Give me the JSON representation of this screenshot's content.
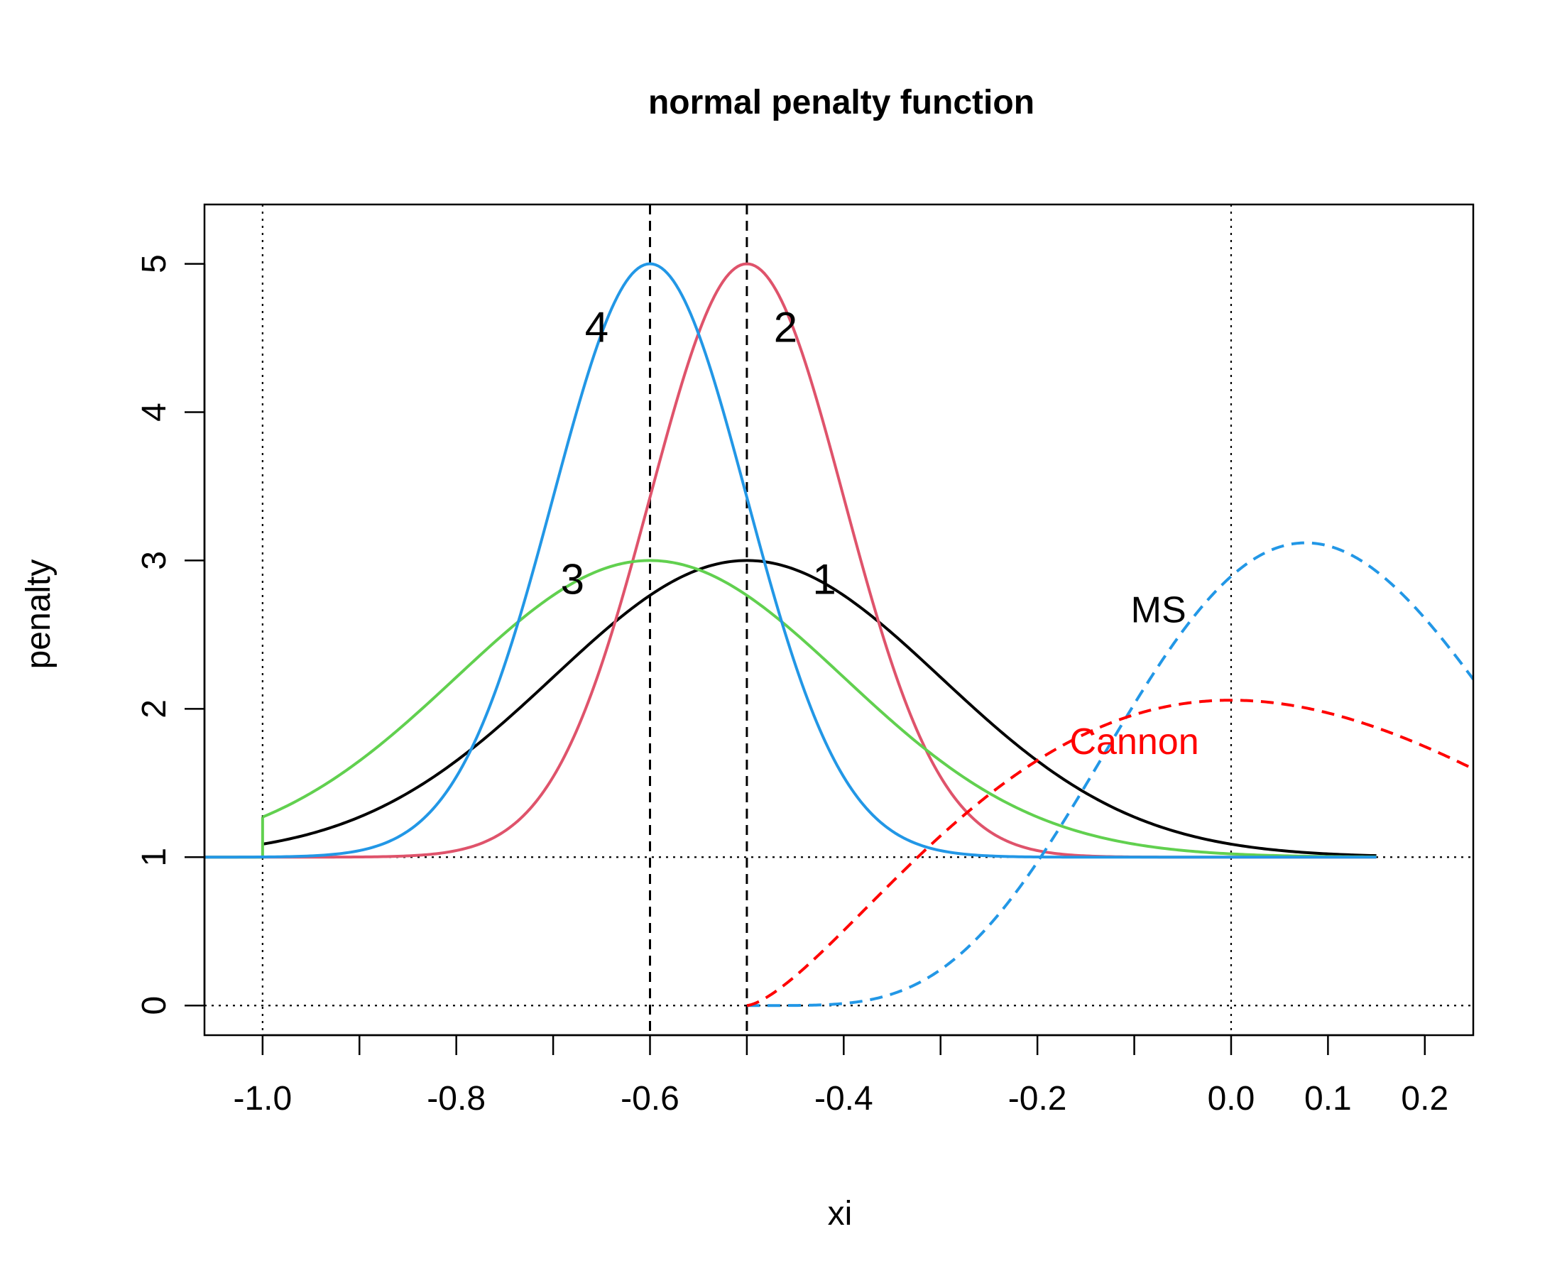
{
  "chart_data": {
    "type": "line",
    "title": "normal penalty function",
    "xlabel": "xi",
    "ylabel": "penalty",
    "xlim": [
      -1.06,
      0.25
    ],
    "ylim": [
      -0.2,
      5.4
    ],
    "xticks": [
      -1.0,
      -0.9,
      -0.8,
      -0.7,
      -0.6,
      -0.5,
      -0.4,
      -0.3,
      -0.2,
      -0.1,
      0.0,
      0.1,
      0.2
    ],
    "xtick_labels": [
      {
        "x": -1.0,
        "text": "-1.0"
      },
      {
        "x": -0.8,
        "text": "-0.8"
      },
      {
        "x": -0.6,
        "text": "-0.6"
      },
      {
        "x": -0.4,
        "text": "-0.4"
      },
      {
        "x": -0.2,
        "text": "-0.2"
      },
      {
        "x": 0.0,
        "text": "0.0"
      },
      {
        "x": 0.1,
        "text": "0.1"
      },
      {
        "x": 0.2,
        "text": "0.2"
      }
    ],
    "ytick_labels": [
      {
        "y": 0,
        "text": "0"
      },
      {
        "y": 1,
        "text": "1"
      },
      {
        "y": 2,
        "text": "2"
      },
      {
        "y": 3,
        "text": "3"
      },
      {
        "y": 4,
        "text": "4"
      },
      {
        "y": 5,
        "text": "5"
      }
    ],
    "reference_lines": [
      {
        "orientation": "h",
        "value": 0,
        "style": "dotted"
      },
      {
        "orientation": "h",
        "value": 1,
        "style": "dotted"
      },
      {
        "orientation": "v",
        "value": -1.0,
        "style": "dotted"
      },
      {
        "orientation": "v",
        "value": 0.0,
        "style": "dotted"
      },
      {
        "orientation": "v",
        "value": -0.6,
        "style": "dashed"
      },
      {
        "orientation": "v",
        "value": -0.5,
        "style": "dashed"
      }
    ],
    "series": [
      {
        "name": "1",
        "color": "#000000",
        "dash": "solid",
        "kind": "normal",
        "mean": -0.5,
        "sd": 0.2,
        "peak": 3,
        "from": -1.0,
        "to": 0.15
      },
      {
        "name": "2",
        "color": "#DF536B",
        "dash": "solid",
        "kind": "normal",
        "mean": -0.5,
        "sd": 0.1,
        "peak": 5,
        "from": -1.06,
        "to": 0.15
      },
      {
        "name": "3",
        "color": "#61D04F",
        "dash": "solid",
        "kind": "normal",
        "mean": -0.6,
        "sd": 0.2,
        "peak": 3,
        "from": -1.0,
        "to": 0.15,
        "left_segment": [
          [
            -1.06,
            1
          ],
          [
            -1.0,
            1
          ],
          [
            -1.0,
            1.27
          ]
        ]
      },
      {
        "name": "4",
        "color": "#2297E6",
        "dash": "solid",
        "kind": "normal",
        "mean": -0.6,
        "sd": 0.1,
        "peak": 5,
        "from": -1.06,
        "to": 0.15
      },
      {
        "name": "MS",
        "color": "#2297E6",
        "dash": "dashed",
        "kind": "beta",
        "a": 6,
        "b": 9,
        "from": -0.5,
        "to": 0.25
      },
      {
        "name": "Cannon",
        "color": "#FF0000",
        "dash": "dashed",
        "kind": "beta",
        "a": 2.5,
        "b": 4,
        "from": -0.5,
        "to": 0.25
      }
    ],
    "annotations": [
      {
        "text": "1",
        "x": -0.42,
        "y": 2.85,
        "color": "#000000",
        "class": "curve-label"
      },
      {
        "text": "2",
        "x": -0.46,
        "y": 4.55,
        "color": "#000000",
        "class": "curve-label"
      },
      {
        "text": "3",
        "x": -0.68,
        "y": 2.85,
        "color": "#000000",
        "class": "curve-label"
      },
      {
        "text": "4",
        "x": -0.655,
        "y": 4.55,
        "color": "#000000",
        "class": "curve-label"
      },
      {
        "text": "MS",
        "x": -0.075,
        "y": 2.65,
        "color": "#000000",
        "class": "annot-label"
      },
      {
        "text": "Cannon",
        "x": -0.1,
        "y": 1.76,
        "color": "#FF0000",
        "class": "annot-label"
      }
    ]
  }
}
